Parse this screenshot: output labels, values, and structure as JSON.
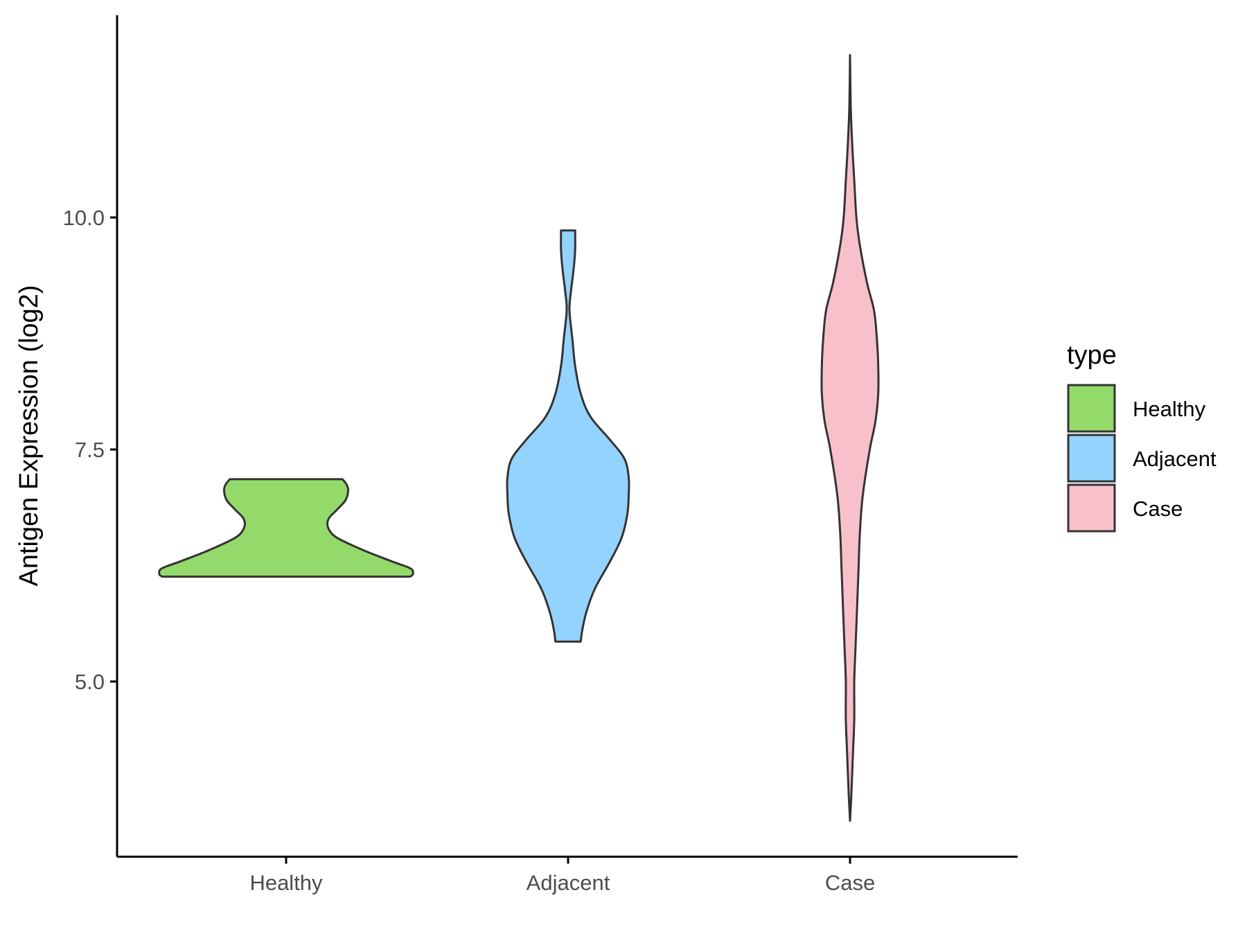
{
  "chart_data": {
    "type": "violin",
    "ylabel": "Antigen Expression (log2)",
    "xlabel": "",
    "title": "",
    "categories": [
      "Healthy",
      "Adjacent",
      "Case"
    ],
    "y_ticks": [
      5.0,
      7.5,
      10.0
    ],
    "y_tick_labels": [
      "5.0",
      "7.5",
      "10.0"
    ],
    "ylim": [
      3.1,
      12.2
    ],
    "grid": false,
    "legend": {
      "title": "type",
      "position": "right",
      "entries": [
        {
          "label": "Healthy",
          "color": "#93DA6A"
        },
        {
          "label": "Adjacent",
          "color": "#94D3FD"
        },
        {
          "label": "Case",
          "color": "#F7C0CB"
        }
      ]
    },
    "series": [
      {
        "category": "Healthy",
        "color": "#93DA6A",
        "range": [
          6.13,
          7.18
        ],
        "profile": [
          [
            6.13,
            0.88
          ],
          [
            6.16,
            0.9
          ],
          [
            6.22,
            0.88
          ],
          [
            6.3,
            0.74
          ],
          [
            6.42,
            0.54
          ],
          [
            6.55,
            0.36
          ],
          [
            6.65,
            0.3
          ],
          [
            6.75,
            0.3
          ],
          [
            6.85,
            0.36
          ],
          [
            6.95,
            0.42
          ],
          [
            7.05,
            0.44
          ],
          [
            7.12,
            0.43
          ],
          [
            7.18,
            0.4
          ]
        ]
      },
      {
        "category": "Adjacent",
        "color": "#94D3FD",
        "range": [
          5.43,
          9.86
        ],
        "profile": [
          [
            5.43,
            0.09
          ],
          [
            5.55,
            0.1
          ],
          [
            5.75,
            0.13
          ],
          [
            6.0,
            0.19
          ],
          [
            6.3,
            0.3
          ],
          [
            6.55,
            0.38
          ],
          [
            6.8,
            0.42
          ],
          [
            7.0,
            0.43
          ],
          [
            7.2,
            0.43
          ],
          [
            7.4,
            0.4
          ],
          [
            7.6,
            0.3
          ],
          [
            7.85,
            0.16
          ],
          [
            8.1,
            0.09
          ],
          [
            8.4,
            0.05
          ],
          [
            8.7,
            0.03
          ],
          [
            9.0,
            0.01
          ],
          [
            9.2,
            0.02
          ],
          [
            9.45,
            0.04
          ],
          [
            9.65,
            0.05
          ],
          [
            9.86,
            0.05
          ]
        ]
      },
      {
        "category": "Case",
        "color": "#F7C0CB",
        "range": [
          3.5,
          11.75
        ],
        "profile": [
          [
            3.5,
            0.0
          ],
          [
            3.8,
            0.01
          ],
          [
            4.2,
            0.02
          ],
          [
            4.6,
            0.03
          ],
          [
            5.0,
            0.03
          ],
          [
            5.4,
            0.04
          ],
          [
            5.8,
            0.05
          ],
          [
            6.2,
            0.06
          ],
          [
            6.6,
            0.07
          ],
          [
            7.0,
            0.09
          ],
          [
            7.5,
            0.14
          ],
          [
            7.8,
            0.18
          ],
          [
            8.1,
            0.2
          ],
          [
            8.4,
            0.2
          ],
          [
            8.7,
            0.19
          ],
          [
            9.0,
            0.17
          ],
          [
            9.3,
            0.12
          ],
          [
            9.7,
            0.07
          ],
          [
            10.0,
            0.045
          ],
          [
            10.4,
            0.03
          ],
          [
            10.8,
            0.015
          ],
          [
            11.2,
            0.005
          ],
          [
            11.75,
            0.0
          ]
        ]
      }
    ]
  }
}
